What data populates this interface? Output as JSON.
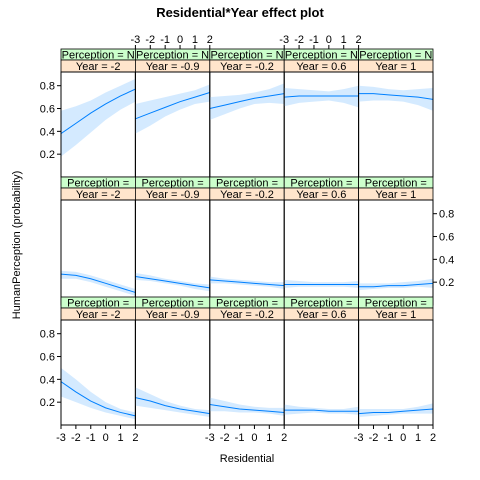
{
  "chart_data": {
    "type": "line",
    "title": "Residential*Year effect plot",
    "xlabel": "Residential",
    "ylabel": "HumanPerception (probability)",
    "xlim": [
      -3,
      2
    ],
    "ylim": [
      0,
      0.92
    ],
    "x_ticks": [
      -3,
      -2,
      -1,
      0,
      1,
      2
    ],
    "x_tick_labels": [
      "-3",
      "-2",
      "-1",
      "0",
      "1",
      "2"
    ],
    "y_ticks": [
      0.2,
      0.4,
      0.6,
      0.8
    ],
    "y_tick_labels": [
      "0.2",
      "0.4",
      "0.6",
      "0.8"
    ],
    "line_color": "#0080FF",
    "band_color": "#CCE6FF",
    "perception_strip_color": "#CCFFCC",
    "year_strip_color": "#FFE5CC",
    "x": [
      -3,
      -2,
      -1,
      0,
      1,
      2
    ],
    "rows": [
      {
        "perception_label": "Perception = N",
        "panels": [
          {
            "year_label": "Year = -2",
            "y": [
              0.38,
              0.47,
              0.56,
              0.64,
              0.71,
              0.77
            ],
            "lower": [
              0.18,
              0.28,
              0.39,
              0.5,
              0.59,
              0.66
            ],
            "upper": [
              0.58,
              0.62,
              0.67,
              0.74,
              0.8,
              0.86
            ]
          },
          {
            "year_label": "Year = -0.9",
            "y": [
              0.51,
              0.56,
              0.61,
              0.66,
              0.7,
              0.74
            ],
            "lower": [
              0.38,
              0.45,
              0.53,
              0.59,
              0.64,
              0.66
            ],
            "upper": [
              0.64,
              0.67,
              0.7,
              0.73,
              0.76,
              0.81
            ]
          },
          {
            "year_label": "Year = -0.2",
            "y": [
              0.6,
              0.63,
              0.66,
              0.69,
              0.71,
              0.73
            ],
            "lower": [
              0.5,
              0.55,
              0.6,
              0.64,
              0.65,
              0.64
            ],
            "upper": [
              0.7,
              0.71,
              0.72,
              0.74,
              0.77,
              0.82
            ]
          },
          {
            "year_label": "Year = 0.6",
            "y": [
              0.7,
              0.71,
              0.71,
              0.71,
              0.71,
              0.71
            ],
            "lower": [
              0.62,
              0.65,
              0.66,
              0.67,
              0.65,
              0.61
            ],
            "upper": [
              0.78,
              0.77,
              0.76,
              0.75,
              0.77,
              0.8
            ]
          },
          {
            "year_label": "Year = 1",
            "y": [
              0.73,
              0.73,
              0.72,
              0.71,
              0.7,
              0.68
            ],
            "lower": [
              0.66,
              0.67,
              0.67,
              0.66,
              0.63,
              0.58
            ],
            "upper": [
              0.8,
              0.79,
              0.77,
              0.76,
              0.77,
              0.78
            ]
          }
        ]
      },
      {
        "perception_label": "Perception = ",
        "panels": [
          {
            "year_label": "Year = -2",
            "y": [
              0.27,
              0.26,
              0.23,
              0.19,
              0.15,
              0.11
            ],
            "lower": [
              0.23,
              0.23,
              0.2,
              0.16,
              0.12,
              0.08
            ],
            "upper": [
              0.3,
              0.29,
              0.26,
              0.22,
              0.18,
              0.14
            ]
          },
          {
            "year_label": "Year = -0.9",
            "y": [
              0.25,
              0.23,
              0.21,
              0.19,
              0.17,
              0.15
            ],
            "lower": [
              0.22,
              0.21,
              0.19,
              0.17,
              0.14,
              0.12
            ],
            "upper": [
              0.28,
              0.26,
              0.23,
              0.21,
              0.19,
              0.18
            ]
          },
          {
            "year_label": "Year = -0.2",
            "y": [
              0.22,
              0.21,
              0.2,
              0.19,
              0.18,
              0.17
            ],
            "lower": [
              0.19,
              0.19,
              0.18,
              0.17,
              0.16,
              0.14
            ],
            "upper": [
              0.25,
              0.23,
              0.22,
              0.21,
              0.2,
              0.2
            ]
          },
          {
            "year_label": "Year = 0.6",
            "y": [
              0.18,
              0.18,
              0.18,
              0.18,
              0.18,
              0.18
            ],
            "lower": [
              0.15,
              0.16,
              0.16,
              0.16,
              0.16,
              0.15
            ],
            "upper": [
              0.22,
              0.21,
              0.2,
              0.2,
              0.2,
              0.21
            ]
          },
          {
            "year_label": "Year = 1",
            "y": [
              0.16,
              0.16,
              0.17,
              0.17,
              0.18,
              0.19
            ],
            "lower": [
              0.13,
              0.14,
              0.15,
              0.15,
              0.16,
              0.15
            ],
            "upper": [
              0.19,
              0.19,
              0.19,
              0.2,
              0.21,
              0.23
            ]
          }
        ]
      },
      {
        "perception_label": "Perception = ",
        "panels": [
          {
            "year_label": "Year = -2",
            "y": [
              0.38,
              0.29,
              0.21,
              0.15,
              0.11,
              0.08
            ],
            "lower": [
              0.25,
              0.2,
              0.15,
              0.11,
              0.08,
              0.05
            ],
            "upper": [
              0.5,
              0.4,
              0.29,
              0.2,
              0.14,
              0.11
            ]
          },
          {
            "year_label": "Year = -0.9",
            "y": [
              0.24,
              0.21,
              0.17,
              0.14,
              0.12,
              0.1
            ],
            "lower": [
              0.17,
              0.15,
              0.13,
              0.11,
              0.09,
              0.07
            ],
            "upper": [
              0.33,
              0.27,
              0.21,
              0.17,
              0.14,
              0.13
            ]
          },
          {
            "year_label": "Year = -0.2",
            "y": [
              0.18,
              0.16,
              0.14,
              0.13,
              0.12,
              0.11
            ],
            "lower": [
              0.12,
              0.12,
              0.11,
              0.11,
              0.1,
              0.08
            ],
            "upper": [
              0.24,
              0.21,
              0.18,
              0.16,
              0.15,
              0.15
            ]
          },
          {
            "year_label": "Year = 0.6",
            "y": [
              0.13,
              0.13,
              0.13,
              0.12,
              0.12,
              0.12
            ],
            "lower": [
              0.09,
              0.1,
              0.11,
              0.1,
              0.1,
              0.09
            ],
            "upper": [
              0.18,
              0.16,
              0.15,
              0.14,
              0.14,
              0.16
            ]
          },
          {
            "year_label": "Year = 1",
            "y": [
              0.1,
              0.11,
              0.11,
              0.12,
              0.13,
              0.14
            ],
            "lower": [
              0.07,
              0.08,
              0.09,
              0.1,
              0.1,
              0.1
            ],
            "upper": [
              0.14,
              0.14,
              0.14,
              0.14,
              0.16,
              0.19
            ]
          }
        ]
      }
    ]
  }
}
